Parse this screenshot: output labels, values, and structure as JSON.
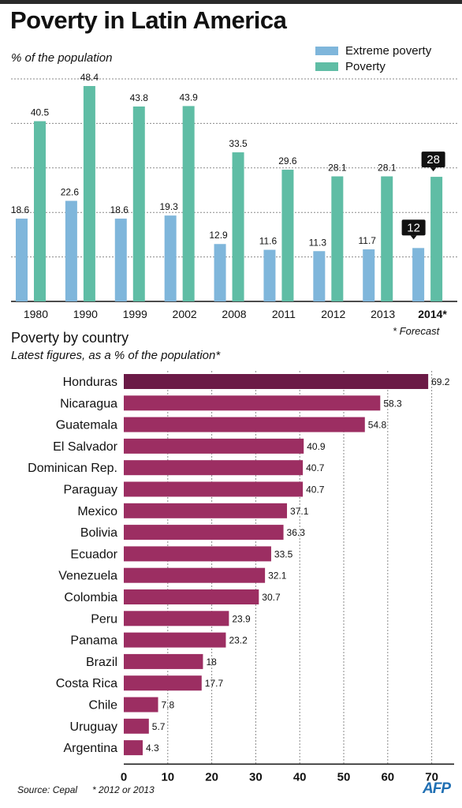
{
  "title": "Poverty in Latin America",
  "colors": {
    "extreme": "#7fb6db",
    "poverty": "#5fbda5",
    "country_bar": "#9c2e62",
    "country_bar_top": "#6b1a46",
    "callout": "#111111"
  },
  "source": "Source: Cepal",
  "footnote_years": "* 2012 or 2013",
  "logo": "AFP",
  "chart_data": [
    {
      "type": "bar",
      "subtitle": "% of the population",
      "categories": [
        "1980",
        "1990",
        "1999",
        "2002",
        "2008",
        "2011",
        "2012",
        "2013",
        "2014*"
      ],
      "series": [
        {
          "name": "Extreme poverty",
          "values": [
            18.6,
            22.6,
            18.6,
            19.3,
            12.9,
            11.6,
            11.3,
            11.7,
            12
          ]
        },
        {
          "name": "Poverty",
          "values": [
            40.5,
            48.4,
            43.8,
            43.9,
            33.5,
            29.6,
            28.1,
            28.1,
            28
          ]
        }
      ],
      "value_labels": {
        "extreme": [
          "18.6",
          "22.6",
          "18.6",
          "19.3",
          "12.9",
          "11.6",
          "11.3",
          "11.7",
          "12"
        ],
        "poverty": [
          "40.5",
          "48.4",
          "43.8",
          "43.9",
          "33.5",
          "29.6",
          "28.1",
          "28.1",
          "28"
        ]
      },
      "ylim": [
        0,
        50
      ],
      "grid": true,
      "legend": "top-right",
      "forecast_note": "* Forecast"
    },
    {
      "type": "bar",
      "orientation": "horizontal",
      "title": "Poverty by country",
      "subtitle": "Latest figures, as a % of the population*",
      "categories": [
        "Honduras",
        "Nicaragua",
        "Guatemala",
        "El Salvador",
        "Dominican Rep.",
        "Paraguay",
        "Mexico",
        "Bolivia",
        "Ecuador",
        "Venezuela",
        "Colombia",
        "Peru",
        "Panama",
        "Brazil",
        "Costa Rica",
        "Chile",
        "Uruguay",
        "Argentina"
      ],
      "values": [
        69.2,
        58.3,
        54.8,
        40.9,
        40.7,
        40.7,
        37.1,
        36.3,
        33.5,
        32.1,
        30.7,
        23.9,
        23.2,
        18,
        17.7,
        7.8,
        5.7,
        4.3
      ],
      "value_labels": [
        "69.2",
        "58.3",
        "54.8",
        "40.9",
        "40.7",
        "40.7",
        "37.1",
        "36.3",
        "33.5",
        "32.1",
        "30.7",
        "23.9",
        "23.2",
        "18",
        "17.7",
        "7.8",
        "5.7",
        "4.3"
      ],
      "xticks": [
        "0",
        "10",
        "20",
        "30",
        "40",
        "50",
        "60",
        "70"
      ],
      "xlim": [
        0,
        75
      ],
      "grid": true
    }
  ]
}
